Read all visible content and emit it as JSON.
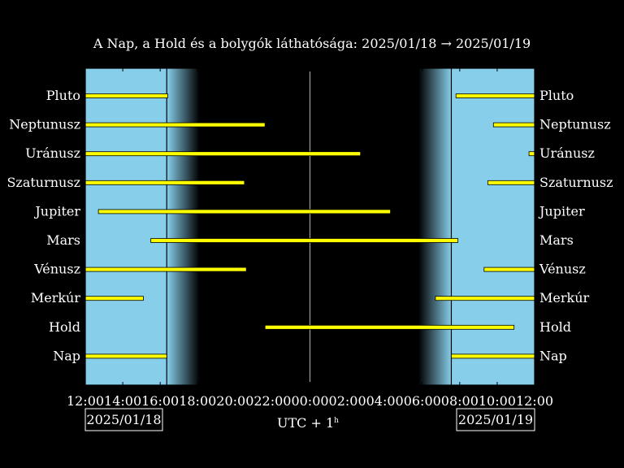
{
  "chart_data": {
    "type": "gantt",
    "title": "A Nap, a Hold és a bolygók láthatósága: 2025/01/18 → 2025/01/19",
    "xlabel_main": "UTC + 1",
    "xlabel_sup": "h",
    "date_left": "2025/01/18",
    "date_right": "2025/01/19",
    "x_range_hours": [
      12,
      36
    ],
    "x_ticks": [
      {
        "value": 12,
        "label": "12:00"
      },
      {
        "value": 14,
        "label": "14:00"
      },
      {
        "value": 16,
        "label": "16:00"
      },
      {
        "value": 18,
        "label": "18:00"
      },
      {
        "value": 20,
        "label": "20:00"
      },
      {
        "value": 22,
        "label": "22:00"
      },
      {
        "value": 24,
        "label": "00:00"
      },
      {
        "value": 26,
        "label": "02:00"
      },
      {
        "value": 28,
        "label": "04:00"
      },
      {
        "value": 30,
        "label": "06:00"
      },
      {
        "value": 32,
        "label": "08:00"
      },
      {
        "value": 34,
        "label": "10:00"
      },
      {
        "value": 36,
        "label": "12:00"
      }
    ],
    "sunset": 16.35,
    "sunrise": 31.55,
    "twilight_evening_end": 18.1,
    "twilight_morning_start": 29.8,
    "midnight": 24.0,
    "colors": {
      "day": "#87ceeb",
      "night": "#000000",
      "bar": "#ffff00",
      "bar_edge": "#000000",
      "text": "#ffffff"
    },
    "bodies": [
      {
        "name": "Pluto",
        "intervals": [
          [
            12.0,
            16.4
          ],
          [
            31.8,
            36.0
          ]
        ]
      },
      {
        "name": "Neptunusz",
        "intervals": [
          [
            12.0,
            21.6
          ],
          [
            33.8,
            36.0
          ]
        ]
      },
      {
        "name": "Uránusz",
        "intervals": [
          [
            12.0,
            26.7
          ],
          [
            35.7,
            36.0
          ]
        ]
      },
      {
        "name": "Szaturnusz",
        "intervals": [
          [
            12.0,
            20.5
          ],
          [
            33.5,
            36.0
          ]
        ]
      },
      {
        "name": "Jupiter",
        "intervals": [
          [
            12.7,
            28.3
          ]
        ]
      },
      {
        "name": "Mars",
        "intervals": [
          [
            15.5,
            31.9
          ]
        ]
      },
      {
        "name": "Vénusz",
        "intervals": [
          [
            12.0,
            20.6
          ],
          [
            33.3,
            36.0
          ]
        ]
      },
      {
        "name": "Merkúr",
        "intervals": [
          [
            12.0,
            15.1
          ],
          [
            30.7,
            36.0
          ]
        ]
      },
      {
        "name": "Hold",
        "intervals": [
          [
            21.6,
            34.9
          ]
        ]
      },
      {
        "name": "Nap",
        "intervals": [
          [
            12.0,
            16.35
          ],
          [
            31.55,
            36.0
          ]
        ]
      }
    ]
  }
}
